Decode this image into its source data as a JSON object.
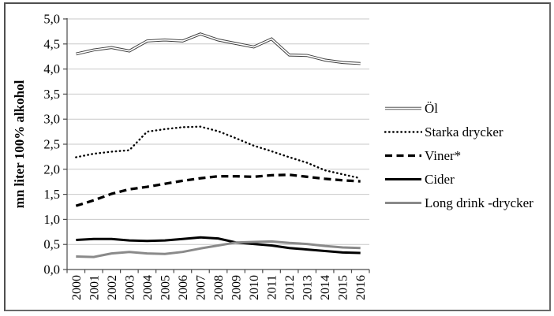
{
  "figure": {
    "background": "#ffffff",
    "border_color": "#6a6a6a"
  },
  "chart_data": {
    "type": "line",
    "title": "",
    "ylabel": "mn liter 100% alkohol",
    "xlabel": "",
    "categories": [
      "2000",
      "2001",
      "2002",
      "2003",
      "2004",
      "2005",
      "2006",
      "2007",
      "2008",
      "2009",
      "2010",
      "2011",
      "2012",
      "2013",
      "2014",
      "2015",
      "2016"
    ],
    "y_tick_labels": [
      "0,0",
      "0,5",
      "1,0",
      "1,5",
      "2,0",
      "2,5",
      "3,0",
      "3,5",
      "4,0",
      "4,5",
      "5,0"
    ],
    "ylim": [
      0,
      5
    ],
    "ytick_step": 0.5,
    "grid": true,
    "gridline_color": "#c9c9c9",
    "axis_color": "#4a4a4a",
    "legend_position": "right-middle",
    "decimal_separator": ",",
    "series": [
      {
        "name": "Öl",
        "style": "double-outline",
        "color": "#3d3d3d",
        "values": [
          4.3,
          4.38,
          4.43,
          4.36,
          4.56,
          4.58,
          4.56,
          4.7,
          4.58,
          4.51,
          4.44,
          4.6,
          4.28,
          4.27,
          4.18,
          4.13,
          4.11
        ]
      },
      {
        "name": "Starka drycker",
        "style": "dotted",
        "color": "#000000",
        "values": [
          2.24,
          2.31,
          2.35,
          2.38,
          2.75,
          2.8,
          2.84,
          2.85,
          2.76,
          2.62,
          2.47,
          2.36,
          2.24,
          2.13,
          1.98,
          1.9,
          1.82
        ]
      },
      {
        "name": "Viner*",
        "style": "dashed",
        "color": "#000000",
        "values": [
          1.27,
          1.38,
          1.51,
          1.6,
          1.65,
          1.71,
          1.77,
          1.82,
          1.86,
          1.86,
          1.85,
          1.88,
          1.89,
          1.85,
          1.81,
          1.78,
          1.76
        ]
      },
      {
        "name": "Cider",
        "style": "solid",
        "color": "#000000",
        "values": [
          0.59,
          0.61,
          0.61,
          0.58,
          0.57,
          0.58,
          0.61,
          0.64,
          0.62,
          0.54,
          0.51,
          0.48,
          0.43,
          0.4,
          0.37,
          0.34,
          0.33
        ]
      },
      {
        "name": "Long drink -drycker",
        "style": "solid",
        "color": "#8a8a8a",
        "values": [
          0.26,
          0.25,
          0.32,
          0.35,
          0.32,
          0.31,
          0.35,
          0.42,
          0.48,
          0.54,
          0.55,
          0.56,
          0.53,
          0.51,
          0.47,
          0.44,
          0.43
        ]
      }
    ]
  }
}
